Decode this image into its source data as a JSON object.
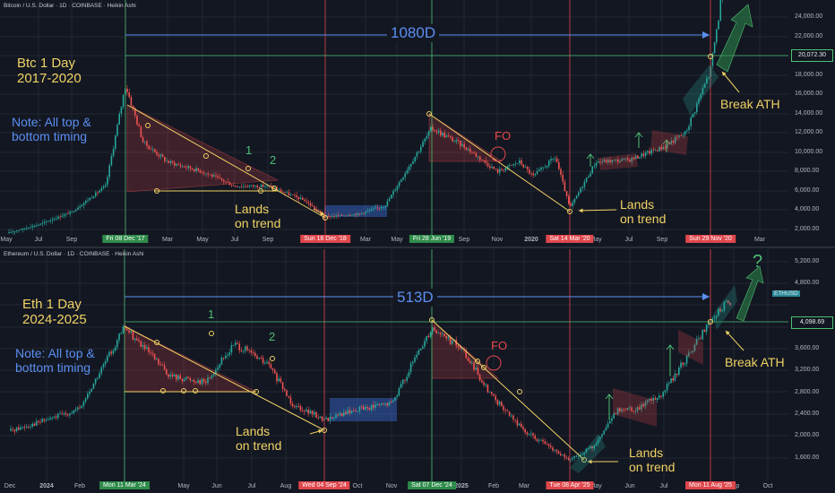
{
  "colors": {
    "background": "#131722",
    "accent_green": "#4fbf73",
    "accent_red": "#e0474c",
    "accent_blue": "#5b8ff0",
    "annotation_yellow": "#f0d264"
  },
  "btc": {
    "header": "Bitcoin / U.S. Dollar · 1D · COINBASE · Heikin Ashi",
    "title": "Btc 1 Day\n2017-2020",
    "note": "Note: All top &\nbottom timing",
    "days": "1080D",
    "fo": "FO",
    "lands": "Lands\non trend",
    "lands2": "Lands\non trend",
    "break_ath": "Break ATH",
    "num1": "1",
    "num2": "2",
    "price_tag": "20,072.30",
    "y_ticks": [
      "24,000.00",
      "22,000.00",
      "20,000.00",
      "18,000.00",
      "16,000.00",
      "14,000.00",
      "12,000.00",
      "10,000.00",
      "8,000.00",
      "6,000.00",
      "4,000.00",
      "2,000.00"
    ],
    "x_ticks": [
      "May",
      "Jul",
      "Sep",
      "Mar",
      "May",
      "Jul",
      "Sep",
      "Mar",
      "May",
      "Sep",
      "Nov",
      "2020",
      "May",
      "Jul",
      "Sep",
      "Mar"
    ],
    "date_tags": [
      "Fri 08 Dec '17",
      "Sun 16 Dec '18",
      "Fri 28 Jun '19",
      "Sat 14 Mar '20",
      "Sun 29 Nov '20"
    ],
    "chart_data": {
      "type": "line",
      "title": "Bitcoin / U.S. Dollar · 1D · COINBASE · Heikin Ashi",
      "x": [
        "2017-05-01",
        "2017-07-01",
        "2017-09-01",
        "2017-11-01",
        "2017-12-08",
        "2018-01-15",
        "2018-03-01",
        "2018-05-01",
        "2018-07-01",
        "2018-09-01",
        "2018-11-15",
        "2018-12-16",
        "2019-02-01",
        "2019-04-01",
        "2019-06-28",
        "2019-08-01",
        "2019-10-01",
        "2019-11-01",
        "2020-01-01",
        "2020-02-15",
        "2020-03-14",
        "2020-05-01",
        "2020-07-01",
        "2020-09-01",
        "2020-10-15",
        "2020-11-29",
        "2020-12-31"
      ],
      "series": [
        {
          "values": [
            1600,
            2500,
            3800,
            6500,
            17000,
            11000,
            9000,
            8000,
            6500,
            6500,
            5000,
            3300,
            3600,
            4500,
            12500,
            10500,
            8000,
            9000,
            7500,
            9500,
            4200,
            9000,
            9200,
            10500,
            12000,
            18500,
            29000
          ]
        }
      ],
      "ylim": [
        2000,
        24000
      ],
      "grid": true
    }
  },
  "eth": {
    "header": "Ethereum / U.S. Dollar · 1D · COINBASE · Heikin Ashi",
    "title": "Eth 1 Day\n2024-2025",
    "note": "Note: All top &\nbottom timing",
    "days": "513D",
    "fo": "FO",
    "lands": "Lands\non trend",
    "lands2": "Lands\non trend",
    "break_ath": "Break ATH",
    "num1": "1",
    "num2": "2",
    "question": "?",
    "price_tag": "4,098.69",
    "ticker_tag": "ETHUSD",
    "y_ticks": [
      "5,200.00",
      "4,800.00",
      "4,400.00",
      "4,000.00",
      "3,600.00",
      "3,200.00",
      "2,800.00",
      "2,400.00",
      "2,000.00",
      "1,600.00"
    ],
    "x_ticks": [
      "Dec",
      "2024",
      "Feb",
      "May",
      "Jun",
      "Jul",
      "Aug",
      "Oct",
      "Nov",
      "2025",
      "Feb",
      "Mar",
      "May",
      "Jun",
      "Jul",
      "Sep",
      "Oct"
    ],
    "date_tags": [
      "Mon 11 Mar '24",
      "Wed 04 Sep '24",
      "Sat 07 Dec '24",
      "Tue 08 Apr '25",
      "Mon 11 Aug '25"
    ],
    "chart_data": {
      "type": "line",
      "title": "Ethereum / U.S. Dollar · 1D · COINBASE · Heikin Ashi",
      "x": [
        "2023-12-01",
        "2024-01-01",
        "2024-02-01",
        "2024-03-11",
        "2024-04-15",
        "2024-05-15",
        "2024-06-10",
        "2024-07-15",
        "2024-08-05",
        "2024-09-04",
        "2024-10-01",
        "2024-11-01",
        "2024-12-07",
        "2025-01-05",
        "2025-02-01",
        "2025-03-01",
        "2025-04-08",
        "2025-05-01",
        "2025-05-15",
        "2025-06-15",
        "2025-07-15",
        "2025-08-11",
        "2025-09-01"
      ],
      "series": [
        {
          "values": [
            2100,
            2300,
            2500,
            4000,
            3100,
            3000,
            3700,
            3300,
            2600,
            2300,
            2500,
            2600,
            4000,
            3600,
            2700,
            2100,
            1550,
            1850,
            2500,
            2500,
            2800,
            4100,
            4500
          ]
        }
      ],
      "ylim": [
        1400,
        5400
      ],
      "grid": true
    }
  }
}
